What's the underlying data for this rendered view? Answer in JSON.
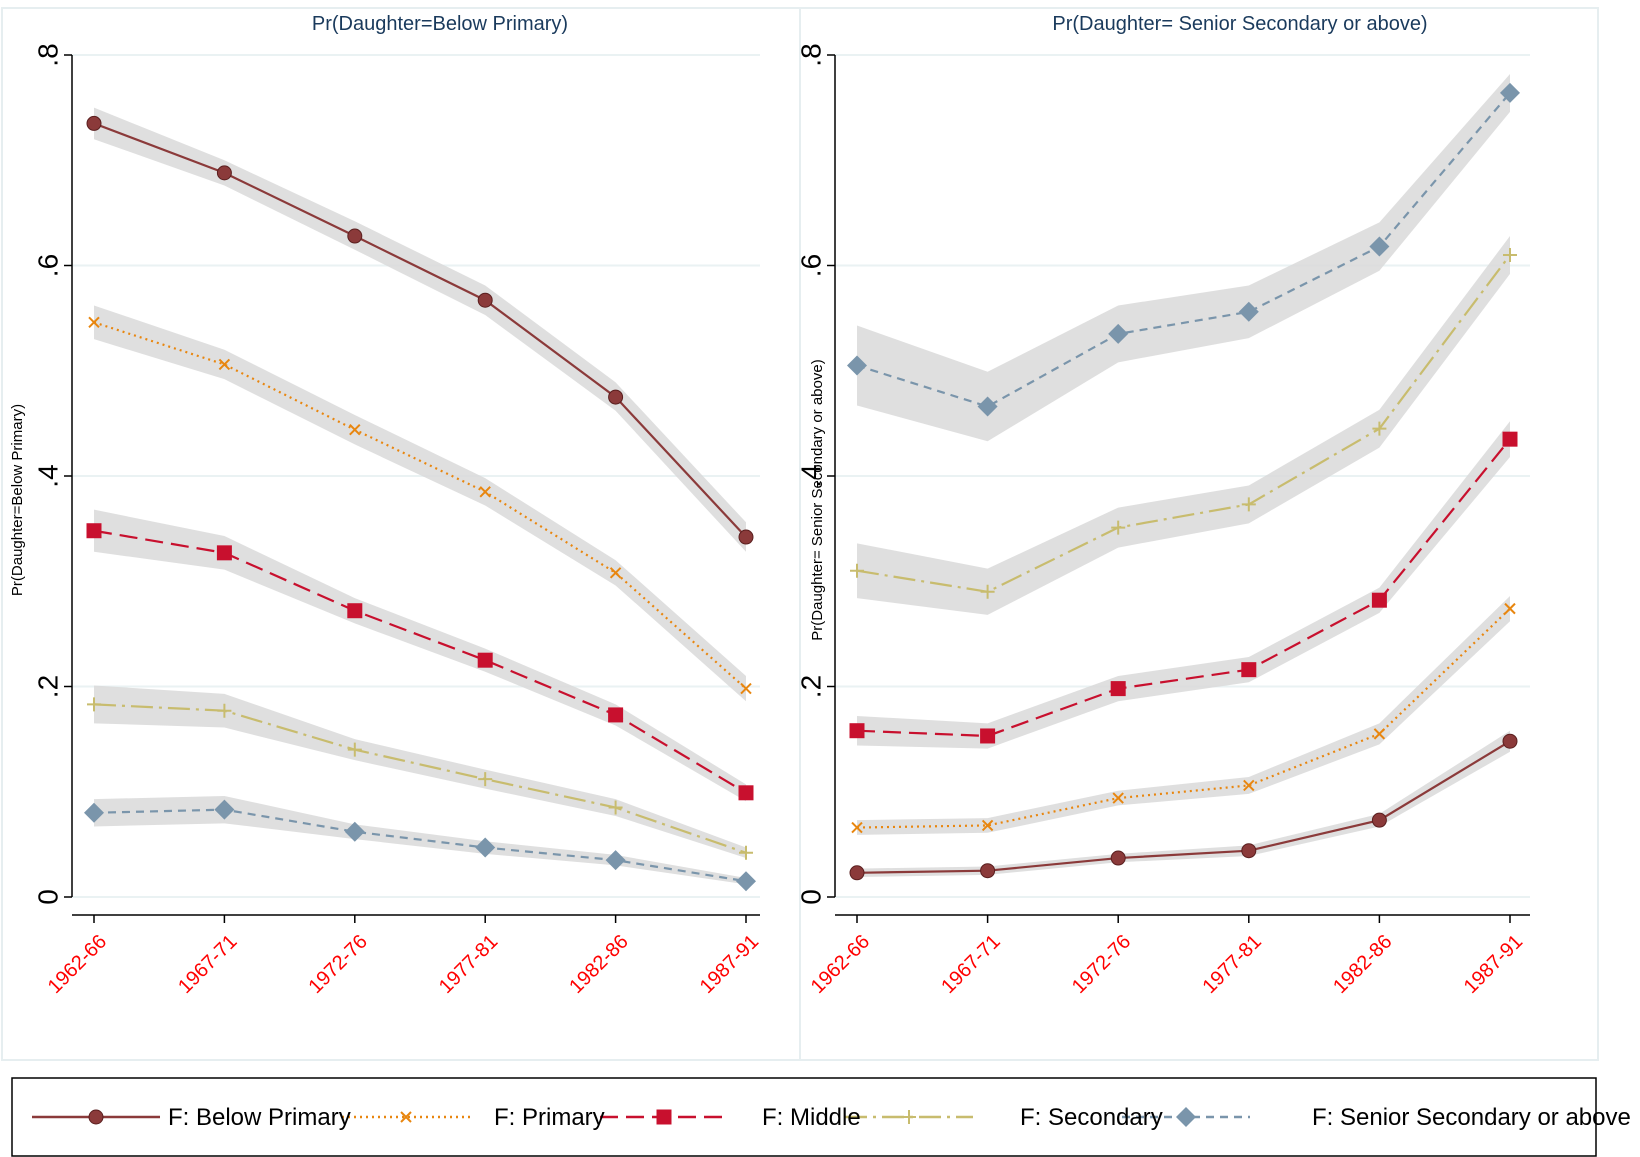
{
  "colors": {
    "band": "#d9d9d9",
    "grid": "#eaf2f3",
    "axis": "#000000",
    "panel_border": "#e6eef0",
    "title": "#1a3a5c",
    "tick_x": "#ff0000"
  },
  "legend": {
    "items": [
      {
        "label": "F: Below Primary",
        "color": "#8b3a3a",
        "marker": "circle",
        "dash": ""
      },
      {
        "label": "F: Primary",
        "color": "#e8860f",
        "marker": "x",
        "dash": "2,4"
      },
      {
        "label": "F: Middle",
        "color": "#c8102e",
        "marker": "square",
        "dash": "18,8"
      },
      {
        "label": "F: Secondary",
        "color": "#c8bc6e",
        "marker": "plus",
        "dash": "22,6,3,6"
      },
      {
        "label": "F: Senior Secondary or above",
        "color": "#7a95ab",
        "marker": "diamond",
        "dash": "8,6"
      }
    ]
  },
  "chart_data": [
    {
      "type": "line",
      "title": "Pr(Daughter=Below Primary)",
      "ylabel": "Pr(Daughter=Below Primary)",
      "categories": [
        "1962-66",
        "1967-71",
        "1972-76",
        "1977-81",
        "1982-86",
        "1987-91"
      ],
      "ylim": [
        0,
        0.8
      ],
      "yticks": [
        0,
        0.2,
        0.4,
        0.6,
        0.8
      ],
      "ytick_labels": [
        "0",
        ".2",
        ".4",
        ".6",
        ".8"
      ],
      "grid": true,
      "confidence_bands": true,
      "series": [
        {
          "name": "F: Below Primary",
          "values": [
            0.735,
            0.688,
            0.628,
            0.567,
            0.475,
            0.342
          ],
          "lower": [
            0.72,
            0.676,
            0.615,
            0.553,
            0.462,
            0.328
          ],
          "upper": [
            0.75,
            0.7,
            0.642,
            0.581,
            0.489,
            0.356
          ]
        },
        {
          "name": "F: Primary",
          "values": [
            0.546,
            0.506,
            0.444,
            0.385,
            0.308,
            0.198
          ],
          "lower": [
            0.53,
            0.492,
            0.43,
            0.372,
            0.296,
            0.186
          ],
          "upper": [
            0.562,
            0.52,
            0.458,
            0.398,
            0.32,
            0.21
          ]
        },
        {
          "name": "F: Middle",
          "values": [
            0.348,
            0.327,
            0.272,
            0.225,
            0.173,
            0.099
          ],
          "lower": [
            0.328,
            0.311,
            0.26,
            0.214,
            0.163,
            0.091
          ],
          "upper": [
            0.368,
            0.343,
            0.284,
            0.236,
            0.183,
            0.107
          ]
        },
        {
          "name": "F: Secondary",
          "values": [
            0.183,
            0.177,
            0.14,
            0.112,
            0.085,
            0.042
          ],
          "lower": [
            0.165,
            0.161,
            0.13,
            0.103,
            0.077,
            0.037
          ],
          "upper": [
            0.201,
            0.193,
            0.15,
            0.121,
            0.093,
            0.047
          ]
        },
        {
          "name": "F: Senior Secondary or above",
          "values": [
            0.08,
            0.083,
            0.062,
            0.047,
            0.035,
            0.015
          ],
          "lower": [
            0.067,
            0.07,
            0.055,
            0.041,
            0.03,
            0.012
          ],
          "upper": [
            0.093,
            0.096,
            0.069,
            0.053,
            0.04,
            0.018
          ]
        }
      ]
    },
    {
      "type": "line",
      "title": "Pr(Daughter= Senior Secondary or above)",
      "ylabel": "Pr(Daughter= Senior Secondary or above)",
      "categories": [
        "1962-66",
        "1967-71",
        "1972-76",
        "1977-81",
        "1982-86",
        "1987-91"
      ],
      "ylim": [
        0,
        0.8
      ],
      "yticks": [
        0,
        0.2,
        0.4,
        0.6,
        0.8
      ],
      "ytick_labels": [
        "0",
        ".2",
        ".4",
        ".6",
        ".8"
      ],
      "grid": true,
      "confidence_bands": true,
      "series": [
        {
          "name": "F: Below Primary",
          "values": [
            0.023,
            0.025,
            0.037,
            0.044,
            0.073,
            0.148
          ],
          "lower": [
            0.019,
            0.021,
            0.033,
            0.039,
            0.067,
            0.138
          ],
          "upper": [
            0.027,
            0.029,
            0.041,
            0.049,
            0.079,
            0.158
          ]
        },
        {
          "name": "F: Primary",
          "values": [
            0.066,
            0.068,
            0.094,
            0.106,
            0.155,
            0.274
          ],
          "lower": [
            0.059,
            0.061,
            0.087,
            0.098,
            0.145,
            0.262
          ],
          "upper": [
            0.073,
            0.075,
            0.101,
            0.114,
            0.165,
            0.286
          ]
        },
        {
          "name": "F: Middle",
          "values": [
            0.158,
            0.153,
            0.198,
            0.216,
            0.282,
            0.435
          ],
          "lower": [
            0.144,
            0.141,
            0.186,
            0.204,
            0.27,
            0.418
          ],
          "upper": [
            0.172,
            0.165,
            0.21,
            0.228,
            0.294,
            0.452
          ]
        },
        {
          "name": "F: Secondary",
          "values": [
            0.31,
            0.29,
            0.351,
            0.373,
            0.445,
            0.61
          ],
          "lower": [
            0.284,
            0.268,
            0.332,
            0.355,
            0.427,
            0.592
          ],
          "upper": [
            0.336,
            0.312,
            0.37,
            0.391,
            0.463,
            0.628
          ]
        },
        {
          "name": "F: Senior Secondary or above",
          "values": [
            0.505,
            0.466,
            0.535,
            0.556,
            0.618,
            0.764
          ],
          "lower": [
            0.467,
            0.433,
            0.508,
            0.531,
            0.595,
            0.746
          ],
          "upper": [
            0.543,
            0.499,
            0.562,
            0.581,
            0.641,
            0.782
          ]
        }
      ]
    }
  ]
}
